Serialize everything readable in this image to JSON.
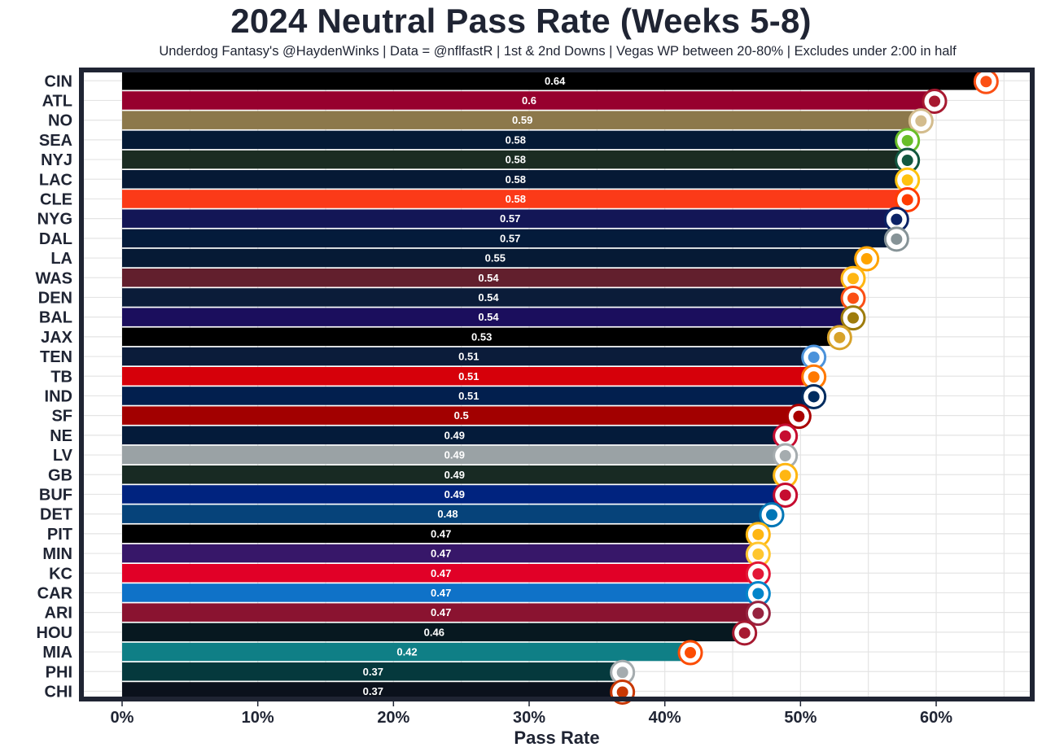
{
  "chart_data": {
    "type": "bar",
    "orientation": "horizontal",
    "title": "2024 Neutral Pass Rate (Weeks 5-8)",
    "subtitle": "Underdog Fantasy's @HaydenWinks | Data = @nflfastR | 1st & 2nd Downs | Vegas WP between 20-80% | Excludes under 2:00 in half",
    "xlabel": "Pass Rate",
    "ylabel": "",
    "xlim": [
      -0.03,
      0.67
    ],
    "x_ticks": [
      0,
      0.1,
      0.2,
      0.3,
      0.4,
      0.5,
      0.6
    ],
    "x_tick_labels": [
      "0%",
      "10%",
      "20%",
      "30%",
      "40%",
      "50%",
      "60%"
    ],
    "grid": true,
    "legend": "none",
    "categories": [
      "CIN",
      "ATL",
      "NO",
      "SEA",
      "NYJ",
      "LAC",
      "CLE",
      "NYG",
      "DAL",
      "LA",
      "WAS",
      "DEN",
      "BAL",
      "JAX",
      "TEN",
      "TB",
      "IND",
      "SF",
      "NE",
      "LV",
      "GB",
      "BUF",
      "DET",
      "PIT",
      "MIN",
      "KC",
      "CAR",
      "ARI",
      "HOU",
      "MIA",
      "PHI",
      "CHI"
    ],
    "values": [
      0.638,
      0.6,
      0.59,
      0.58,
      0.58,
      0.58,
      0.58,
      0.572,
      0.572,
      0.55,
      0.54,
      0.54,
      0.54,
      0.53,
      0.511,
      0.511,
      0.511,
      0.5,
      0.49,
      0.49,
      0.49,
      0.49,
      0.48,
      0.47,
      0.47,
      0.47,
      0.47,
      0.47,
      0.46,
      0.42,
      0.37,
      0.37
    ],
    "data_labels": [
      "0.64",
      "0.6",
      "0.59",
      "0.58",
      "0.58",
      "0.58",
      "0.58",
      "0.57",
      "0.57",
      "0.55",
      "0.54",
      "0.54",
      "0.54",
      "0.53",
      "0.51",
      "0.51",
      "0.51",
      "0.5",
      "0.49",
      "0.49",
      "0.49",
      "0.49",
      "0.48",
      "0.47",
      "0.47",
      "0.47",
      "0.47",
      "0.47",
      "0.46",
      "0.42",
      "0.37",
      "0.37"
    ],
    "bar_colors": [
      "#000000",
      "#97002e",
      "#8c784b",
      "#041a35",
      "#1b2c22",
      "#061935",
      "#fb3a18",
      "#131656",
      "#041b3b",
      "#061a35",
      "#621f2d",
      "#0b1c39",
      "#1b0e5d",
      "#000000",
      "#0b1c3a",
      "#d6000a",
      "#021f4e",
      "#a20000",
      "#041b3a",
      "#9aa2a5",
      "#182a23",
      "#00237f",
      "#06437a",
      "#000000",
      "#371769",
      "#e10027",
      "#0f72c8",
      "#8a1330",
      "#071820",
      "#0f7f86",
      "#05393d",
      "#0b111c"
    ],
    "logo_icons": [
      "bengals-logo-icon",
      "falcons-logo-icon",
      "saints-logo-icon",
      "seahawks-logo-icon",
      "jets-logo-icon",
      "chargers-logo-icon",
      "browns-logo-icon",
      "giants-logo-icon",
      "cowboys-logo-icon",
      "rams-logo-icon",
      "commanders-logo-icon",
      "broncos-logo-icon",
      "ravens-logo-icon",
      "jaguars-logo-icon",
      "titans-logo-icon",
      "buccaneers-logo-icon",
      "colts-logo-icon",
      "49ers-logo-icon",
      "patriots-logo-icon",
      "raiders-logo-icon",
      "packers-logo-icon",
      "bills-logo-icon",
      "lions-logo-icon",
      "steelers-logo-icon",
      "vikings-logo-icon",
      "chiefs-logo-icon",
      "panthers-logo-icon",
      "cardinals-logo-icon",
      "texans-logo-icon",
      "dolphins-logo-icon",
      "eagles-logo-icon",
      "bears-logo-icon"
    ],
    "logo_colors": [
      "#fb4f14",
      "#a71930",
      "#d3bc8d",
      "#69be28",
      "#125740",
      "#ffc20e",
      "#ff3c00",
      "#0b2265",
      "#869397",
      "#ffa300",
      "#ffb612",
      "#fb4f14",
      "#9e7c0c",
      "#d7a22a",
      "#4b92db",
      "#ff7900",
      "#002c5f",
      "#aa0000",
      "#c60c30",
      "#a5acaf",
      "#ffb612",
      "#c60c30",
      "#0076b6",
      "#ffb612",
      "#ffc62f",
      "#e31837",
      "#0085ca",
      "#97233f",
      "#a71930",
      "#fc4c02",
      "#a5acaf",
      "#c83803"
    ]
  },
  "colors": {
    "panel_border": "#1f2433",
    "grid": "#e4e4e4",
    "text": "#1f2433"
  }
}
